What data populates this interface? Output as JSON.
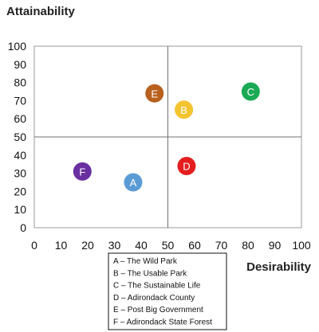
{
  "chart_data": {
    "type": "scatter",
    "title": "",
    "xlabel": "Desirability",
    "ylabel": "Attainability",
    "xlim": [
      0,
      100
    ],
    "ylim": [
      0,
      100
    ],
    "xticks": [
      "0",
      "10",
      "20",
      "30",
      "40",
      "50",
      "60",
      "70",
      "80",
      "90",
      "100"
    ],
    "yticks": [
      "0",
      "10",
      "20",
      "30",
      "40",
      "50",
      "60",
      "70",
      "80",
      "90",
      "100"
    ],
    "quadrant_lines": {
      "x": 50,
      "y": 50
    },
    "grid": false,
    "legend_position": "bottom-center",
    "points": [
      {
        "label": "A",
        "x": 37,
        "y": 25,
        "color": "#5b9bd5"
      },
      {
        "label": "B",
        "x": 56,
        "y": 65,
        "color": "#f4c430"
      },
      {
        "label": "C",
        "x": 81,
        "y": 75,
        "color": "#1aaa55"
      },
      {
        "label": "D",
        "x": 57,
        "y": 34,
        "color": "#e41e1e"
      },
      {
        "label": "E",
        "x": 45,
        "y": 74,
        "color": "#b8601e"
      },
      {
        "label": "F",
        "x": 18,
        "y": 31,
        "color": "#6a2fa0"
      }
    ],
    "legend": [
      "A – The Wild Park",
      "B – The Usable Park",
      "C – The Sustainable Life",
      "D – Adirondack County",
      "E – Post Big Government",
      "F – Adirondack State Forest"
    ]
  }
}
